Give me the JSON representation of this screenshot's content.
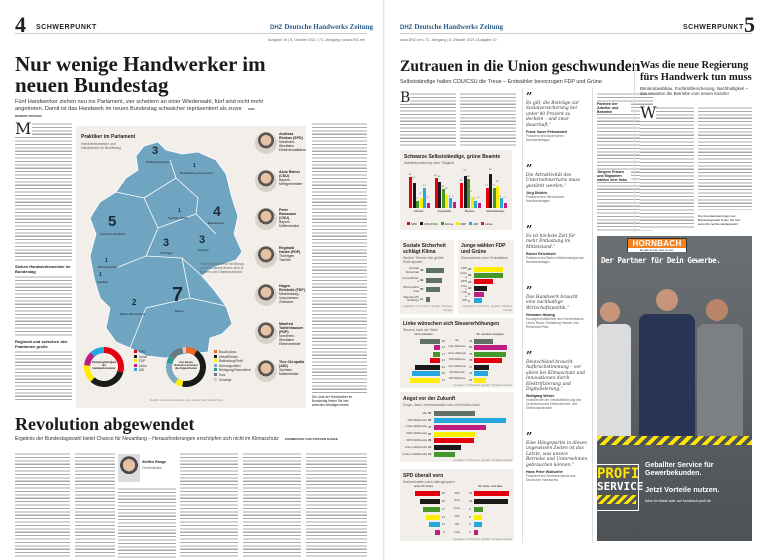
{
  "left_page": {
    "page_number": "4",
    "section": "SCHWERPUNKT",
    "masthead_logo": "DHZ",
    "masthead": "Deutsche Handwerks Zeitung",
    "meta": "Ausgabe 19 | 8. Oktober 2021 | 73. Jahrgang | www.DHZ.net",
    "headline": "Nur wenige Handwerker im neuen Bundestag",
    "dek": "Fünf Handwerker ziehen neu ins Parlament, vier scheitern an einer Wiederwahl, fünf sind nicht mehr angetreten. Damit ist das Handwerk im neuen Bundestag schwächer repräsentiert als zuvor",
    "byline": "VON ROBERT KRÜGER",
    "subhead": "Sieben Handwerksmeister im Bundestag",
    "subhead2": "Regional und zwischen den Fraktionen große Unterschiede",
    "graphic": {
      "title": "Praktiker im Parlament",
      "subtitle": "Handwerksmeister und Handwerker im Bundestag",
      "note": "Viele Abgeordnete mit Bezug zum Handwerk finden sich in Bayern und Ostdeutschland",
      "source": "Grafik: commons.wikimedia.com; Quelle: DHZ Recherchen",
      "map": [
        {
          "count": "3",
          "region": "Schleswig-Holstein"
        },
        {
          "count": "1",
          "region": "Mecklenburg-Vorpommern"
        },
        {
          "count": "4",
          "region": "Brandenburg"
        },
        {
          "count": "5",
          "region": "Nordrhein-Westfalen"
        },
        {
          "count": "1",
          "region": "Sachsen-Anhalt"
        },
        {
          "count": "3",
          "region": "Thüringen"
        },
        {
          "count": "3",
          "region": "Sachsen"
        },
        {
          "count": "1",
          "region": "Rheinland-Pfalz"
        },
        {
          "count": "1",
          "region": "Saarland"
        },
        {
          "count": "2",
          "region": "Baden-Württemberg"
        },
        {
          "count": "7",
          "region": "Bayern"
        }
      ],
      "donut1": {
        "label": "Parteizugehörigkeit der Handwerksmeister",
        "slices": [
          {
            "name": "SPD",
            "value": 10,
            "color": "#e3000f"
          },
          {
            "name": "Union",
            "value": 11,
            "color": "#1a1a1a"
          },
          {
            "name": "FDP",
            "value": 5,
            "color": "#ffed00"
          },
          {
            "name": "Linke",
            "value": 4,
            "color": "#be1e82"
          },
          {
            "name": "AfD",
            "value": 4,
            "color": "#26a7e0"
          }
        ]
      },
      "donut2": {
        "label": "Aus diesen Branchen kommen die Abgeordneten",
        "slices": [
          {
            "name": "Bau/Ausbau",
            "value": 3,
            "color": "#f26522"
          },
          {
            "name": "Metall/Elektro",
            "value": 14,
            "color": "#1a1a1a"
          },
          {
            "name": "Bekleidung/Textil",
            "value": 2,
            "color": "#ffed00"
          },
          {
            "name": "Nahrungsmittel",
            "value": 6,
            "color": "#7fa9bf"
          },
          {
            "name": "Reinigung/Gesundheit",
            "value": 2,
            "color": "#2a9d8f"
          },
          {
            "name": "Holz",
            "value": 4,
            "color": "#6c7a80"
          },
          {
            "name": "Sonstige",
            "value": 1,
            "color": "#cccccc"
          }
        ]
      },
      "people": [
        {
          "name": "Andreas Rimkus (SPD)",
          "state": "Nordrhein-Westfalen",
          "trade": "Elektroinstallateur"
        },
        {
          "name": "Alois Rainer (CSU)",
          "state": "Bayern",
          "trade": "Metzgermeister"
        },
        {
          "name": "Peter Ramsauer (CSU)",
          "state": "Bayern",
          "trade": "Müllermeister"
        },
        {
          "name": "Reginald Hanke (FDP)",
          "state": "Thüringen",
          "trade": "Tischler"
        },
        {
          "name": "Hagen Reinhold (FDP)",
          "state": "Mecklenburg-Vorpommern",
          "trade": "Zimmerer"
        },
        {
          "name": "Manfred Todtenhausen (FDP)",
          "state": "Nordrhein-Westfalen",
          "trade": "Elektromeister"
        },
        {
          "name": "Tino Chrupalla (AfD)",
          "state": "Sachsen",
          "trade": "Malermeister"
        }
      ],
      "link_text": "Die Liste der Handwerker im Bundestag finden Sie hier: www.dhz.net/abgeordnete"
    },
    "commentary": {
      "headline": "Revolution abgewendet",
      "dek": "Ergebnis der Bundestagswahl bietet Chance für Neuanfang – Herausforderungen erschöpfen sich nicht im Klimaschutz",
      "byline": "KOMMENTAR VON STEFFEN RANGE",
      "author": "Steffen Range",
      "author_role": "Chefredakteur"
    }
  },
  "right_page": {
    "page_number": "5",
    "section": "SCHWERPUNKT",
    "masthead_logo": "DHZ",
    "masthead": "Deutsche Handwerks Zeitung",
    "meta": "www.DHZ.net | 73. Jahrgang | 8. Oktober 2021 | Ausgabe 19",
    "headline": "Zutrauen in die Union geschwunden",
    "dek": "Selbstständige halten CDU/CSU die Treue – Erstwähler bevorzugen FDP und Grüne",
    "side_headline": "Was die neue Regierung fürs Handwerk tun muss",
    "side_dek": "Bürokratieabbau, Fachkräftesicherung, Nachhaltigkeit – das erwarten die Betriebe vom neuen Kanzler",
    "subhead1": "Parteien der Arbeiter und Beamten",
    "subhead2": "Jüngere Frauen und Migranten wählen eher links",
    "link_text": "Die Grundauswertungen der Bundestagswahl finden Sie hier: www.dhz.net/bundestagswahl",
    "quotes": [
      {
        "text": "Es gilt, die Beiträge zur Sozialversicherung bei unter 40 Prozent zu deckeln – und zwar dauerhaft.“",
        "name": "Franz Xaver Peteranderl",
        "role": "Präsident des Bayerischen Handwerkstages"
      },
      {
        "text": "Die Attraktivität des Unternehmertums muss gestärkt werden.“",
        "name": "Jörg Dittrich",
        "role": "Präsident des Sächsischen Handwerkstages"
      },
      {
        "text": "Es ist höchste Zeit für mehr Entlastung im Mittelstand.“",
        "name": "Rainer Reichhold",
        "role": "Präsident des Baden-Württembergischen Handwerkstages"
      },
      {
        "text": "Das Handwerk braucht eine nachhaltige Wirtschaftspolitik.“",
        "name": "Hermann Hubing",
        "role": "Hauptgeschäftsführer des Fachverbands Leben Raum Gestaltung Hessen und Rheinland-Pfalz"
      },
      {
        "text": "Deutschland braucht Aufbruchstimmung – vor allem bei Klimaschutz und Innovationen durch Elektrifizierung und Digitalisierung.“",
        "name": "Wolfgang Weber",
        "role": "Vorsitzender der Geschäftsführung des Zentralverbands Elektrotechnik- und Elektronikindustrie"
      },
      {
        "text": "Eine Hängepartie in diesen ungewissen Zeiten ist das Letzte, was unsere Betriebe und Unternehmen gebrauchen können.“",
        "name": "Hans Peter Wollseifer",
        "role": "Präsident des Zentralverbands des Deutschen Handwerks"
      }
    ],
    "ad": {
      "brand": "HORNBACH",
      "slogan": "Es gibt immer was zu tun.",
      "tagline": "Der Partner für Dein Gewerbe.",
      "badge_line1": "PROFI",
      "badge_line2": "SERVICE",
      "line1": "Geballter Service für Gewerbekunden.",
      "line2": "Jetzt Vorteile nutzen.",
      "line3": "Infos im Markt oder auf hornbach-profi.de"
    }
  },
  "colors": {
    "SPD": "#e3000f",
    "Union": "#1a1a1a",
    "Grüne": "#46962b",
    "FDP": "#ffed00",
    "AfD": "#26a7e0",
    "Linke": "#be1e82",
    "alle": "#5e7068",
    "map": "#6fa5c0",
    "brand": "#2b5c8a",
    "ad_orange": "#f58220",
    "ad_yellow": "#ffe500"
  },
  "charts": {
    "c1": {
      "title": "Schwarze Selbstständige, grüne Beamte",
      "subtitle": "Wahlentscheidung nach Tätigkeit",
      "source": "Angaben in Prozent; Quelle: Forschungsgruppe Wahlen",
      "series": [
        "SPD",
        "CDU/CSU",
        "Grüne",
        "FDP",
        "AfD",
        "Linke"
      ],
      "colors": [
        "#e3000f",
        "#1a1a1a",
        "#46962b",
        "#ffed00",
        "#26a7e0",
        "#be1e82"
      ],
      "groups": [
        {
          "name": "Arbeiter",
          "values": [
            26,
            21,
            6,
            8,
            17,
            4
          ]
        },
        {
          "name": "Angestellte",
          "values": [
            25,
            22,
            16,
            12,
            8,
            5
          ]
        },
        {
          "name": "Beamte",
          "values": [
            21,
            27,
            24,
            9,
            6,
            4
          ]
        },
        {
          "name": "Selbstständige",
          "values": [
            17,
            28,
            17,
            18,
            8,
            4
          ]
        }
      ],
      "ymax": 30
    },
    "c2": {
      "title": "Soziale Sicherheit schlägt Klima",
      "subtitle": "Welche Themen die größte Rolle spielen",
      "source": "Angaben in Prozent; Quelle: Infratest Dimap",
      "rows": [
        {
          "label": "Soziale Sicherheit",
          "value": 46
        },
        {
          "label": "Umwelt/Klima",
          "value": 39
        },
        {
          "label": "Wirtschaft/Arbeit",
          "value": 36
        },
        {
          "label": "Migration/Flüchtlinge",
          "value": 11
        }
      ],
      "max": 50,
      "color": "#5e7068"
    },
    "c3": {
      "title": "Junge wählen FDP und Grüne",
      "subtitle": "Stimmanteile unter Erstwählern",
      "source": "Angaben in Prozent; Quelle: Infratest Dimap",
      "rows": [
        {
          "label": "FDP",
          "value": 23,
          "color": "#ffed00"
        },
        {
          "label": "Grüne",
          "value": 23,
          "color": "#46962b"
        },
        {
          "label": "SPD",
          "value": 15,
          "color": "#e3000f"
        },
        {
          "label": "Union",
          "value": 10,
          "color": "#1a1a1a"
        },
        {
          "label": "Linke",
          "value": 8,
          "color": "#be1e82"
        },
        {
          "label": "AfD",
          "value": 6,
          "color": "#26a7e0"
        }
      ],
      "max": 25
    },
    "c4": {
      "title": "Linke wünschen sich Steuererhöhungen",
      "subtitle": "Steuern nach der Wahl",
      "col_left": "nicht anheben",
      "col_right": "für reichere Gruppen",
      "source": "Angaben in Prozent; Quelle: Infratest Dimap",
      "rows": [
        {
          "label": "alle",
          "left": 48,
          "right": 45,
          "color": "#5e7068"
        },
        {
          "label": "Linke Wählende",
          "left": 14,
          "right": 80,
          "color": "#be1e82"
        },
        {
          "label": "Grüne Wählende",
          "left": 17,
          "right": 78,
          "color": "#46962b"
        },
        {
          "label": "SPD-Wählende",
          "left": 24,
          "right": 68,
          "color": "#e3000f"
        },
        {
          "label": "Union-Wählende",
          "left": 61,
          "right": 37,
          "color": "#1a1a1a"
        },
        {
          "label": "AfD-Wählende",
          "left": 69,
          "right": 33,
          "color": "#26a7e0"
        },
        {
          "label": "FDP-Wählende",
          "left": 73,
          "right": 28,
          "color": "#ffed00"
        }
      ],
      "max": 85
    },
    "c5": {
      "title": "Angst vor der Zukunft",
      "subtitle": "Sorge, dass Lebensstandard sich nicht halten lässt",
      "source": "Angaben in Prozent; Quelle: Infratest Dimap",
      "rows": [
        {
          "label": "alle",
          "value": 37,
          "color": "#5e7068"
        },
        {
          "label": "AfD-Wählende",
          "value": 65,
          "color": "#26a7e0"
        },
        {
          "label": "Linke Wählende",
          "value": 47,
          "color": "#be1e82"
        },
        {
          "label": "FDP-Wählende",
          "value": 37,
          "color": "#ffed00"
        },
        {
          "label": "SPD-Wählende",
          "value": 36,
          "color": "#e3000f"
        },
        {
          "label": "Union-Wählende",
          "value": 24,
          "color": "#1a1a1a"
        },
        {
          "label": "Grünen-Wählende",
          "value": 19,
          "color": "#46962b"
        }
      ],
      "max": 65
    },
    "c6": {
      "title": "SPD überall vorn",
      "subtitle": "Wahlverhalten nach Altersgruppen",
      "col_left": "unter 60 Jahre",
      "col_right": "60 Jahre und älter",
      "source": "Angaben in Prozent; Quelle: Infratest Dimap",
      "rows": [
        {
          "label": "SPD",
          "left": 25,
          "right": 35,
          "color": "#e3000f"
        },
        {
          "label": "Union",
          "left": 20,
          "right": 34,
          "color": "#1a1a1a"
        },
        {
          "label": "Grüne",
          "left": 17,
          "right": 9,
          "color": "#46962b"
        },
        {
          "label": "FDP",
          "left": 14,
          "right": 8,
          "color": "#ffed00"
        },
        {
          "label": "AfD",
          "left": 11,
          "right": 8,
          "color": "#26a7e0"
        },
        {
          "label": "Linke",
          "left": 5,
          "right": 4,
          "color": "#be1e82"
        }
      ],
      "max": 35
    }
  }
}
